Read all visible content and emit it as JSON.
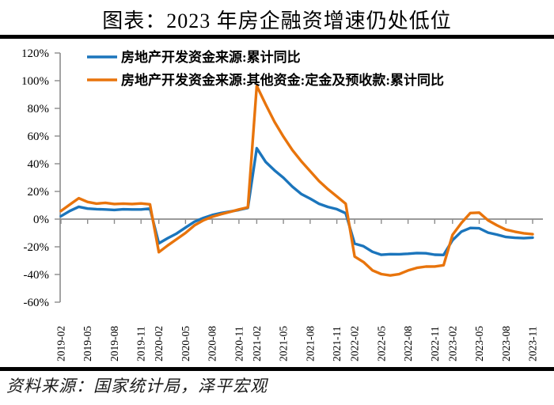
{
  "title": "图表：2023 年房企融资增速仍处低位",
  "footer": {
    "source": "资料来源：国家统计局，泽平宏观"
  },
  "colors": {
    "series_blue": "#1B75BC",
    "series_orange": "#E8740C",
    "axis": "#8C8C8C"
  },
  "chart_data": {
    "type": "line",
    "title": "图表：2023 年房企融资增速仍处低位",
    "xlabel": "",
    "ylabel": "",
    "ylim": [
      -60,
      120
    ],
    "ytick_step": 20,
    "ytick_labels": [
      "120%",
      "100%",
      "80%",
      "60%",
      "40%",
      "20%",
      "0%",
      "-20%",
      "-40%",
      "-60%"
    ],
    "grid": false,
    "legend_position": "top-left",
    "x": [
      "2019-02",
      "2019-03",
      "2019-04",
      "2019-05",
      "2019-06",
      "2019-07",
      "2019-08",
      "2019-09",
      "2019-10",
      "2019-11",
      "2019-12",
      "2020-02",
      "2020-03",
      "2020-04",
      "2020-05",
      "2020-06",
      "2020-07",
      "2020-08",
      "2020-09",
      "2020-10",
      "2020-11",
      "2020-12",
      "2021-02",
      "2021-03",
      "2021-04",
      "2021-05",
      "2021-06",
      "2021-07",
      "2021-08",
      "2021-09",
      "2021-10",
      "2021-11",
      "2021-12",
      "2022-02",
      "2022-03",
      "2022-04",
      "2022-05",
      "2022-06",
      "2022-07",
      "2022-08",
      "2022-09",
      "2022-10",
      "2022-11",
      "2022-12",
      "2023-02",
      "2023-03",
      "2023-04",
      "2023-05",
      "2023-06",
      "2023-07",
      "2023-08",
      "2023-09",
      "2023-10",
      "2023-11"
    ],
    "xtick_indices": [
      0,
      3,
      6,
      9,
      11,
      14,
      17,
      20,
      22,
      25,
      28,
      31,
      33,
      36,
      39,
      42,
      44,
      47,
      50,
      53
    ],
    "xtick_labels": [
      "2019-02",
      "2019-05",
      "2019-08",
      "2019-11",
      "2020-02",
      "2020-05",
      "2020-08",
      "2020-11",
      "2021-02",
      "2021-05",
      "2021-08",
      "2021-11",
      "2022-02",
      "2022-05",
      "2022-08",
      "2022-11",
      "2023-02",
      "2023-05",
      "2023-08",
      "2023-11"
    ],
    "series": [
      {
        "name": "房地产开发资金来源:累计同比",
        "color": "#1B75BC",
        "values": [
          2.1,
          5.9,
          8.9,
          7.6,
          7.2,
          7.0,
          6.6,
          7.1,
          7.0,
          7.0,
          7.6,
          -17.5,
          -13.8,
          -10.4,
          -6.1,
          -1.9,
          0.8,
          3.0,
          4.4,
          5.5,
          6.6,
          8.1,
          51.2,
          41.4,
          35.2,
          29.9,
          23.5,
          18.2,
          14.8,
          11.1,
          8.8,
          7.2,
          4.2,
          -17.7,
          -19.6,
          -23.6,
          -25.8,
          -25.3,
          -25.4,
          -25.0,
          -24.5,
          -24.7,
          -25.7,
          -25.9,
          -15.2,
          -9.0,
          -6.4,
          -6.6,
          -9.8,
          -11.2,
          -12.9,
          -13.5,
          -13.8,
          -13.4
        ]
      },
      {
        "name": "房地产开发资金来源:其他资金:定金及预收款:累计同比",
        "color": "#E8740C",
        "values": [
          5.9,
          10.5,
          15.1,
          12.4,
          11.2,
          11.8,
          10.9,
          11.2,
          10.9,
          11.3,
          10.7,
          -23.9,
          -19.0,
          -14.5,
          -10.0,
          -4.5,
          -0.9,
          1.7,
          3.6,
          5.2,
          7.0,
          8.5,
          96.3,
          83.0,
          70.2,
          59.6,
          49.9,
          41.9,
          34.6,
          27.5,
          21.6,
          16.4,
          11.1,
          -27.0,
          -31.0,
          -37.0,
          -39.7,
          -40.7,
          -39.8,
          -37.1,
          -35.2,
          -34.3,
          -34.2,
          -33.3,
          -11.4,
          -2.8,
          4.4,
          4.7,
          -0.9,
          -4.5,
          -7.6,
          -9.1,
          -10.2,
          -10.9
        ]
      }
    ]
  }
}
